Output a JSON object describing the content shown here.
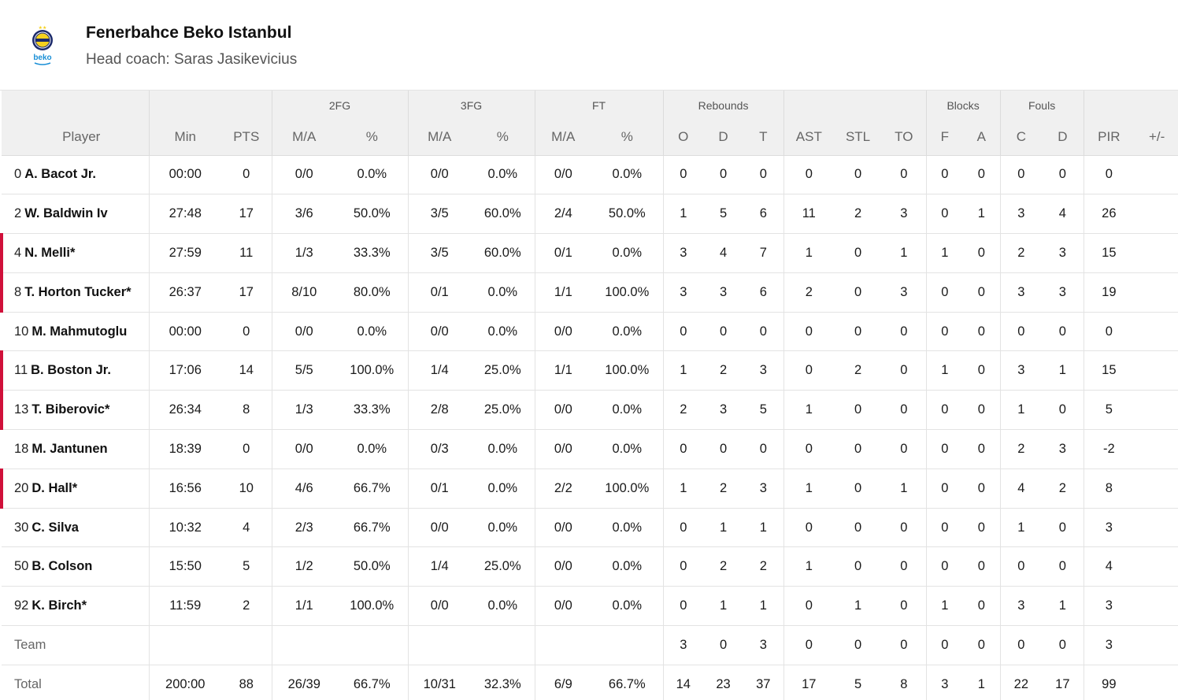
{
  "team": {
    "name": "Fenerbahce Beko Istanbul",
    "coach_label": "Head coach: ",
    "coach": "Saras Jasikevicius",
    "logo_text": "beko",
    "colors": {
      "navy": "#1b2a6b",
      "yellow": "#f5d11f",
      "accent_red": "#d0103a",
      "beko_blue": "#1a8fd6"
    }
  },
  "groups": [
    "2FG",
    "3FG",
    "FT",
    "Rebounds",
    "Blocks",
    "Fouls"
  ],
  "columns": [
    "Player",
    "Min",
    "PTS",
    "M/A",
    "%",
    "M/A",
    "%",
    "M/A",
    "%",
    "O",
    "D",
    "T",
    "AST",
    "STL",
    "TO",
    "F",
    "A",
    "C",
    "D",
    "PIR",
    "+/-"
  ],
  "players": [
    {
      "num": "0",
      "name": "A. Bacot Jr.",
      "starter": false,
      "stats": [
        "00:00",
        "0",
        "0/0",
        "0.0%",
        "0/0",
        "0.0%",
        "0/0",
        "0.0%",
        "0",
        "0",
        "0",
        "0",
        "0",
        "0",
        "0",
        "0",
        "0",
        "0",
        "0",
        ""
      ]
    },
    {
      "num": "2",
      "name": "W. Baldwin Iv",
      "starter": false,
      "stats": [
        "27:48",
        "17",
        "3/6",
        "50.0%",
        "3/5",
        "60.0%",
        "2/4",
        "50.0%",
        "1",
        "5",
        "6",
        "11",
        "2",
        "3",
        "0",
        "1",
        "3",
        "4",
        "26",
        ""
      ]
    },
    {
      "num": "4",
      "name": "N. Melli*",
      "starter": true,
      "stats": [
        "27:59",
        "11",
        "1/3",
        "33.3%",
        "3/5",
        "60.0%",
        "0/1",
        "0.0%",
        "3",
        "4",
        "7",
        "1",
        "0",
        "1",
        "1",
        "0",
        "2",
        "3",
        "15",
        ""
      ]
    },
    {
      "num": "8",
      "name": "T. Horton Tucker*",
      "starter": true,
      "stats": [
        "26:37",
        "17",
        "8/10",
        "80.0%",
        "0/1",
        "0.0%",
        "1/1",
        "100.0%",
        "3",
        "3",
        "6",
        "2",
        "0",
        "3",
        "0",
        "0",
        "3",
        "3",
        "19",
        ""
      ]
    },
    {
      "num": "10",
      "name": "M. Mahmutoglu",
      "starter": false,
      "stats": [
        "00:00",
        "0",
        "0/0",
        "0.0%",
        "0/0",
        "0.0%",
        "0/0",
        "0.0%",
        "0",
        "0",
        "0",
        "0",
        "0",
        "0",
        "0",
        "0",
        "0",
        "0",
        "0",
        ""
      ]
    },
    {
      "num": "11",
      "name": "B. Boston Jr.",
      "starter": true,
      "stats": [
        "17:06",
        "14",
        "5/5",
        "100.0%",
        "1/4",
        "25.0%",
        "1/1",
        "100.0%",
        "1",
        "2",
        "3",
        "0",
        "2",
        "0",
        "1",
        "0",
        "3",
        "1",
        "15",
        ""
      ]
    },
    {
      "num": "13",
      "name": "T. Biberovic*",
      "starter": true,
      "stats": [
        "26:34",
        "8",
        "1/3",
        "33.3%",
        "2/8",
        "25.0%",
        "0/0",
        "0.0%",
        "2",
        "3",
        "5",
        "1",
        "0",
        "0",
        "0",
        "0",
        "1",
        "0",
        "5",
        ""
      ]
    },
    {
      "num": "18",
      "name": "M. Jantunen",
      "starter": false,
      "stats": [
        "18:39",
        "0",
        "0/0",
        "0.0%",
        "0/3",
        "0.0%",
        "0/0",
        "0.0%",
        "0",
        "0",
        "0",
        "0",
        "0",
        "0",
        "0",
        "0",
        "2",
        "3",
        "-2",
        ""
      ]
    },
    {
      "num": "20",
      "name": "D. Hall*",
      "starter": true,
      "stats": [
        "16:56",
        "10",
        "4/6",
        "66.7%",
        "0/1",
        "0.0%",
        "2/2",
        "100.0%",
        "1",
        "2",
        "3",
        "1",
        "0",
        "1",
        "0",
        "0",
        "4",
        "2",
        "8",
        ""
      ]
    },
    {
      "num": "30",
      "name": "C. Silva",
      "starter": false,
      "stats": [
        "10:32",
        "4",
        "2/3",
        "66.7%",
        "0/0",
        "0.0%",
        "0/0",
        "0.0%",
        "0",
        "1",
        "1",
        "0",
        "0",
        "0",
        "0",
        "0",
        "1",
        "0",
        "3",
        ""
      ]
    },
    {
      "num": "50",
      "name": "B. Colson",
      "starter": false,
      "stats": [
        "15:50",
        "5",
        "1/2",
        "50.0%",
        "1/4",
        "25.0%",
        "0/0",
        "0.0%",
        "0",
        "2",
        "2",
        "1",
        "0",
        "0",
        "0",
        "0",
        "0",
        "0",
        "4",
        ""
      ]
    },
    {
      "num": "92",
      "name": "K. Birch*",
      "starter": false,
      "stats": [
        "11:59",
        "2",
        "1/1",
        "100.0%",
        "0/0",
        "0.0%",
        "0/0",
        "0.0%",
        "0",
        "1",
        "1",
        "0",
        "1",
        "0",
        "1",
        "0",
        "3",
        "1",
        "3",
        ""
      ]
    }
  ],
  "team_row": {
    "label": "Team",
    "stats": [
      "",
      "",
      "",
      "",
      "",
      "",
      "",
      "",
      "3",
      "0",
      "3",
      "0",
      "0",
      "0",
      "0",
      "0",
      "0",
      "0",
      "3",
      ""
    ]
  },
  "total_row": {
    "label": "Total",
    "stats": [
      "200:00",
      "88",
      "26/39",
      "66.7%",
      "10/31",
      "32.3%",
      "6/9",
      "66.7%",
      "14",
      "23",
      "37",
      "17",
      "5",
      "8",
      "3",
      "1",
      "22",
      "17",
      "99",
      ""
    ]
  }
}
